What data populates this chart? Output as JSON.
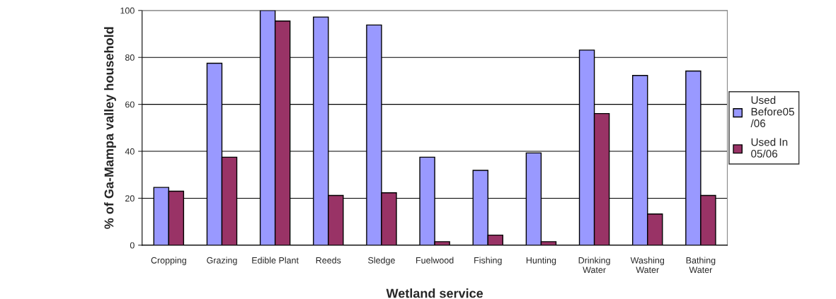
{
  "chart_data": {
    "type": "bar",
    "xlabel": "Wetland service",
    "ylabel": "% of Ga-Mampa valley household",
    "categories": [
      "Cropping",
      "Grazing",
      "Edible Plant",
      "Reeds",
      "Sledge",
      "Fuelwood",
      "Fishing",
      "Hunting",
      "Drinking\nWater",
      "Washing\nWater",
      "Bathing\nWater"
    ],
    "series": [
      {
        "name": "Used\nBefore05\n/06",
        "color": "#9999ff",
        "values": [
          24.6,
          77.5,
          100,
          97.2,
          93.8,
          37.5,
          31.9,
          39.3,
          83.1,
          72.3,
          74.2
        ]
      },
      {
        "name": "Used In\n05/06",
        "color": "#993366",
        "values": [
          23,
          37.5,
          95.5,
          21.2,
          22.3,
          1.5,
          4.3,
          1.5,
          56.1,
          13.3,
          21.2
        ]
      }
    ],
    "ylim": [
      0,
      100
    ],
    "yticks": [
      0,
      20,
      40,
      60,
      80,
      100
    ],
    "grid": "y",
    "legend": "right"
  }
}
